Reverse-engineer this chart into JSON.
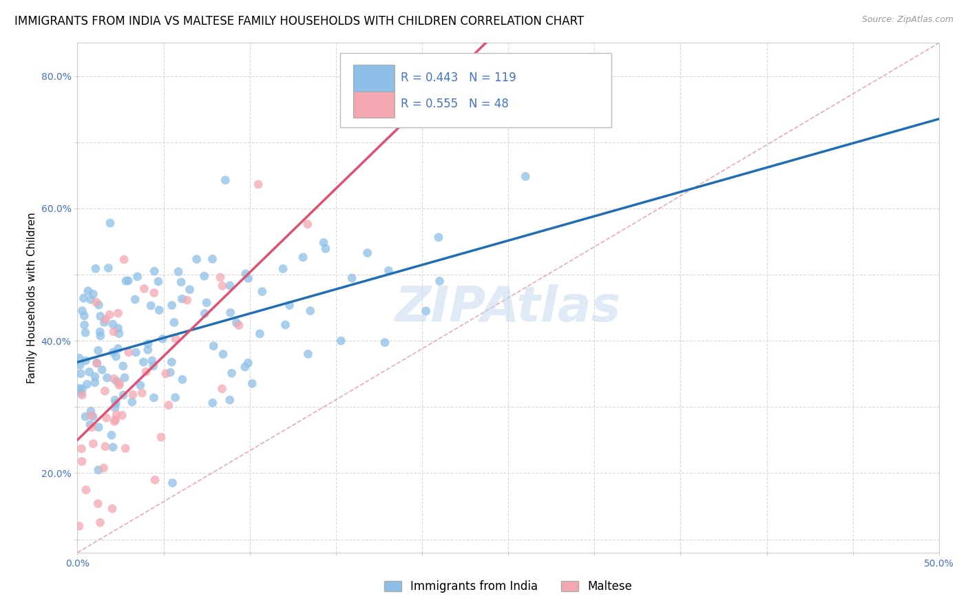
{
  "title": "IMMIGRANTS FROM INDIA VS MALTESE FAMILY HOUSEHOLDS WITH CHILDREN CORRELATION CHART",
  "source": "Source: ZipAtlas.com",
  "ylabel": "Family Households with Children",
  "xlim": [
    0.0,
    0.5
  ],
  "ylim": [
    0.08,
    0.85
  ],
  "xtick_positions": [
    0.0,
    0.05,
    0.1,
    0.15,
    0.2,
    0.25,
    0.3,
    0.35,
    0.4,
    0.45,
    0.5
  ],
  "xtick_labels": [
    "0.0%",
    "",
    "",
    "",
    "",
    "",
    "",
    "",
    "",
    "",
    "50.0%"
  ],
  "ytick_positions": [
    0.1,
    0.2,
    0.3,
    0.4,
    0.5,
    0.6,
    0.7,
    0.8
  ],
  "ytick_labels": [
    "",
    "20.0%",
    "",
    "40.0%",
    "",
    "60.0%",
    "",
    "80.0%"
  ],
  "color_india": "#8dbfe8",
  "color_maltese": "#f4a7b0",
  "color_india_line": "#1f6eb5",
  "color_maltese_line": "#e05070",
  "color_diag": "#e8a0a8",
  "background_color": "#ffffff",
  "grid_color": "#d8d8d8",
  "watermark_color": "#c8d8f0",
  "title_fontsize": 12,
  "axis_label_fontsize": 11,
  "tick_fontsize": 10,
  "legend_fontsize": 12,
  "legend_r1": "R = 0.443",
  "legend_n1": "N = 119",
  "legend_r2": "R = 0.555",
  "legend_n2": "N = 48",
  "text_color": "#4472c4"
}
